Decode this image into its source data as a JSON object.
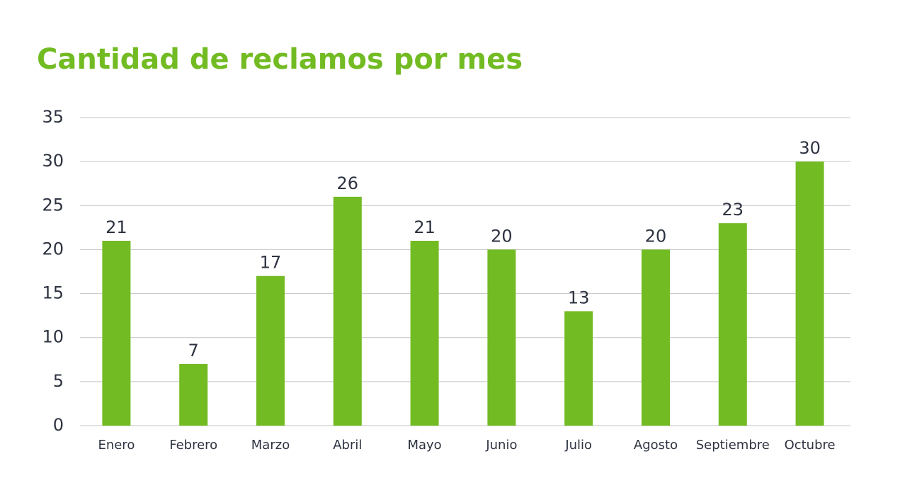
{
  "chart_data": {
    "type": "bar",
    "title": "Cantidad de reclamos por mes",
    "categories": [
      "Enero",
      "Febrero",
      "Marzo",
      "Abril",
      "Mayo",
      "Junio",
      "Julio",
      "Agosto",
      "Septiembre",
      "Octubre"
    ],
    "values": [
      21,
      7,
      17,
      26,
      21,
      20,
      13,
      20,
      23,
      30
    ],
    "color": "#72bb22",
    "ylim": [
      0,
      35
    ],
    "yticks": [
      0,
      5,
      10,
      15,
      20,
      25,
      30,
      35
    ],
    "grid": true
  }
}
